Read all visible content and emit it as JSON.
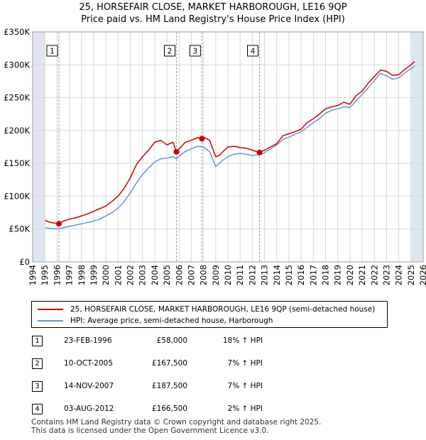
{
  "title_line1": "25, HORSEFAIR CLOSE, MARKET HARBOROUGH, LE16 9QP",
  "title_line2": "Price paid vs. HM Land Registry's House Price Index (HPI)",
  "colors": {
    "property": "#cc0000",
    "hpi": "#6699cc",
    "shade": "#dde6f2",
    "grid": "#d8d8d8"
  },
  "chart_data": {
    "type": "line",
    "xlabel": "",
    "ylabel": "",
    "xlim": [
      1994,
      2026
    ],
    "ylim": [
      0,
      350000
    ],
    "y_ticks": [
      0,
      50000,
      100000,
      150000,
      200000,
      250000,
      300000,
      350000
    ],
    "y_tick_labels": [
      "£0",
      "£50K",
      "£100K",
      "£150K",
      "£200K",
      "£250K",
      "£300K",
      "£350K"
    ],
    "x_ticks": [
      1994,
      1995,
      1996,
      1997,
      1998,
      1999,
      2000,
      2001,
      2002,
      2003,
      2004,
      2005,
      2006,
      2007,
      2008,
      2009,
      2010,
      2011,
      2012,
      2013,
      2014,
      2015,
      2016,
      2017,
      2018,
      2019,
      2020,
      2021,
      2022,
      2023,
      2024,
      2025,
      2026
    ],
    "series": [
      {
        "name": "25, HORSEFAIR CLOSE, MARKET HARBOROUGH, LE16 9QP (semi-detached house)",
        "color": "#cc0000",
        "x": [
          1995.0,
          1995.5,
          1996.15,
          1996.5,
          1997.0,
          1997.5,
          1998.0,
          1998.5,
          1999.0,
          1999.5,
          2000.0,
          2000.5,
          2001.0,
          2001.5,
          2002.0,
          2002.5,
          2003.0,
          2003.5,
          2004.0,
          2004.5,
          2005.0,
          2005.5,
          2005.78,
          2006.0,
          2006.5,
          2007.0,
          2007.5,
          2007.87,
          2008.0,
          2008.5,
          2009.0,
          2009.3,
          2009.6,
          2010.0,
          2010.5,
          2011.0,
          2011.5,
          2012.0,
          2012.59,
          2013.0,
          2013.5,
          2014.0,
          2014.5,
          2015.0,
          2015.5,
          2016.0,
          2016.5,
          2017.0,
          2017.5,
          2018.0,
          2018.5,
          2019.0,
          2019.5,
          2020.0,
          2020.5,
          2021.0,
          2021.5,
          2022.0,
          2022.5,
          2023.0,
          2023.5,
          2024.0,
          2024.5,
          2025.0,
          2025.3
        ],
        "values": [
          63000,
          60000,
          58000,
          62000,
          65000,
          67000,
          70000,
          73000,
          77000,
          81000,
          85000,
          92000,
          100000,
          112000,
          128000,
          148000,
          160000,
          170000,
          182000,
          185000,
          178000,
          182000,
          167500,
          172000,
          182000,
          185000,
          189000,
          187500,
          190000,
          185000,
          160000,
          162000,
          168000,
          175000,
          176000,
          174000,
          173000,
          170000,
          166500,
          170000,
          175000,
          180000,
          192000,
          195000,
          198000,
          202000,
          212000,
          218000,
          225000,
          233000,
          236000,
          238000,
          243000,
          240000,
          253000,
          260000,
          272000,
          282000,
          292000,
          290000,
          284000,
          285000,
          293000,
          300000,
          305000
        ]
      },
      {
        "name": "HPI: Average price, semi-detached house, Harborough",
        "color": "#6699cc",
        "x": [
          1995.0,
          1995.5,
          1996.15,
          1996.5,
          1997.0,
          1997.5,
          1998.0,
          1998.5,
          1999.0,
          1999.5,
          2000.0,
          2000.5,
          2001.0,
          2001.5,
          2002.0,
          2002.5,
          2003.0,
          2003.5,
          2004.0,
          2004.5,
          2005.0,
          2005.5,
          2005.78,
          2006.0,
          2006.5,
          2007.0,
          2007.5,
          2007.87,
          2008.0,
          2008.5,
          2009.0,
          2009.3,
          2009.6,
          2010.0,
          2010.5,
          2011.0,
          2011.5,
          2012.0,
          2012.59,
          2013.0,
          2013.5,
          2014.0,
          2014.5,
          2015.0,
          2015.5,
          2016.0,
          2016.5,
          2017.0,
          2017.5,
          2018.0,
          2018.5,
          2019.0,
          2019.5,
          2020.0,
          2020.5,
          2021.0,
          2021.5,
          2022.0,
          2022.5,
          2023.0,
          2023.5,
          2024.0,
          2024.5,
          2025.0,
          2025.3
        ],
        "values": [
          52000,
          51000,
          50000,
          52000,
          54000,
          56000,
          58000,
          60000,
          62000,
          65000,
          70000,
          75000,
          82000,
          92000,
          105000,
          120000,
          133000,
          143000,
          152000,
          157000,
          158000,
          160000,
          157000,
          161000,
          168000,
          172000,
          176000,
          175000,
          175000,
          168000,
          145000,
          150000,
          155000,
          160000,
          164000,
          165000,
          164000,
          162000,
          163000,
          166000,
          172000,
          178000,
          186000,
          190000,
          194000,
          198000,
          205000,
          212000,
          218000,
          226000,
          231000,
          233000,
          236000,
          235000,
          245000,
          255000,
          265000,
          276000,
          287000,
          283000,
          278000,
          280000,
          288000,
          294000,
          298000
        ]
      }
    ],
    "sales": [
      {
        "n": "1",
        "year": 1996.15,
        "price": 58000,
        "date": "23-FEB-1996",
        "price_label": "£58,000",
        "hpi_label": "18% ↑ HPI"
      },
      {
        "n": "2",
        "year": 2005.78,
        "price": 167500,
        "date": "10-OCT-2005",
        "price_label": "£167,500",
        "hpi_label": "7% ↑ HPI"
      },
      {
        "n": "3",
        "year": 2007.87,
        "price": 187500,
        "date": "14-NOV-2007",
        "price_label": "£187,500",
        "hpi_label": "7% ↑ HPI"
      },
      {
        "n": "4",
        "year": 2012.59,
        "price": 166500,
        "date": "03-AUG-2012",
        "price_label": "£166,500",
        "hpi_label": "2% ↑ HPI"
      }
    ],
    "shaded_ranges": [
      [
        1994,
        1995
      ],
      [
        2025.0,
        2026
      ]
    ]
  },
  "legend": {
    "property": "25, HORSEFAIR CLOSE, MARKET HARBOROUGH, LE16 9QP (semi-detached house)",
    "hpi": "HPI: Average price, semi-detached house, Harborough"
  },
  "footer": {
    "line1": "Contains HM Land Registry data © Crown copyright and database right 2025.",
    "line2": "This data is licensed under the Open Government Licence v3.0."
  }
}
